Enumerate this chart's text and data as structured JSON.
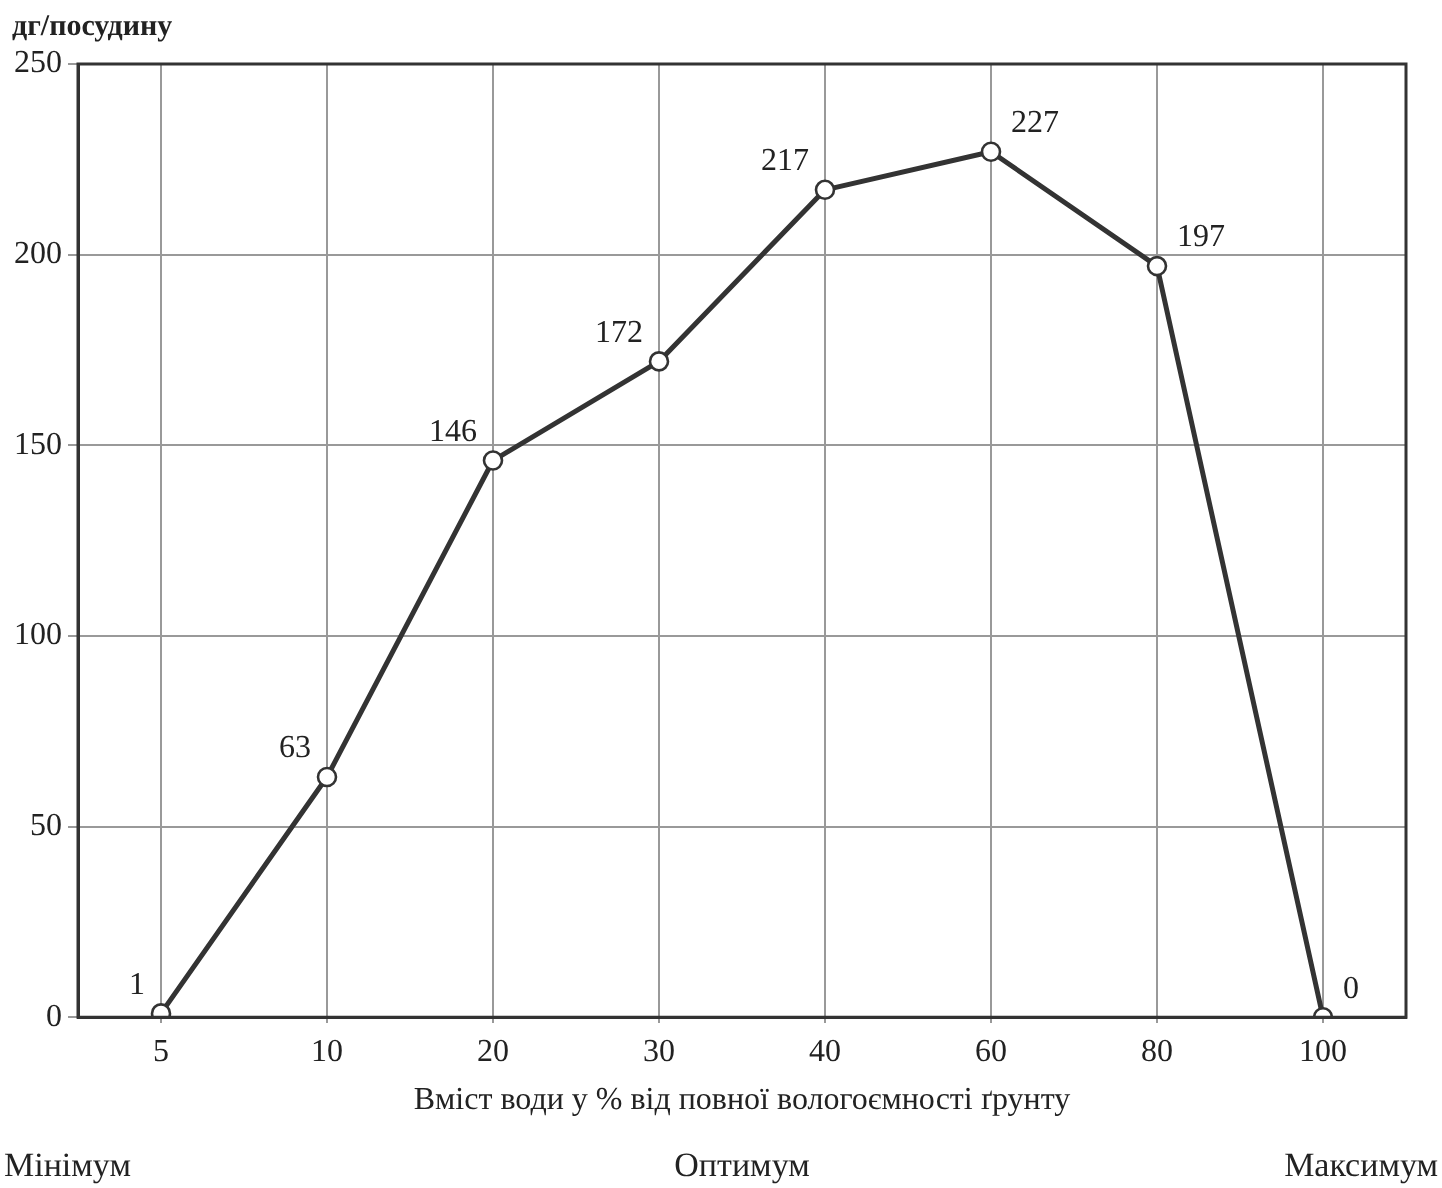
{
  "chart_data": {
    "type": "line",
    "xlabel": "Вміст води у % від повної вологоємності ґрунту",
    "ylabel": "дг/посудину",
    "categories": [
      "5",
      "10",
      "20",
      "30",
      "40",
      "60",
      "80",
      "100"
    ],
    "values": [
      1,
      63,
      146,
      172,
      217,
      227,
      197,
      0
    ],
    "color": "#333333",
    "ylim": [
      0,
      250
    ],
    "yticks": [
      0,
      50,
      100,
      150,
      200,
      250
    ],
    "grid": true,
    "marker": "circle",
    "line_style": "solid",
    "data_labels": true,
    "legend": false,
    "annotations": [
      "Мінімум",
      "Оптимум",
      "Максимум"
    ]
  }
}
